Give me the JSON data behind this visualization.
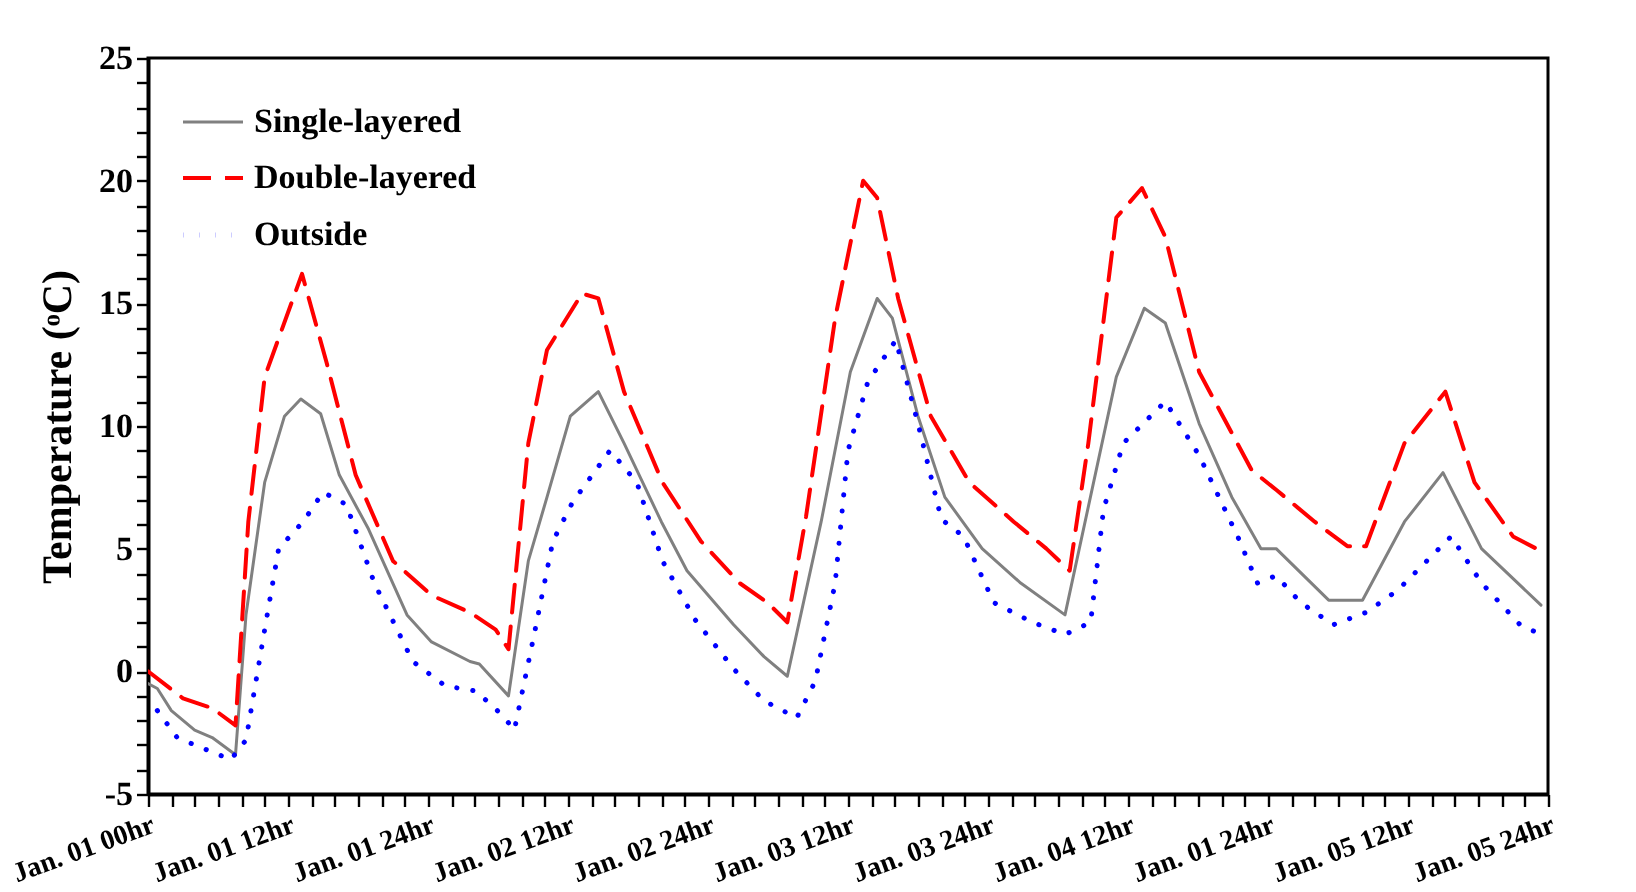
{
  "chart_data": {
    "type": "line",
    "ylabel": "Temperature (ᵒC)",
    "legend": "top left",
    "grid": false,
    "xlim": [
      "--01-01T00:00",
      "--01-06T00:00"
    ],
    "ylim": [
      -5,
      25
    ],
    "xticks": [
      {
        "value": "--01-01T00:00",
        "label": "Jan. 01 00hr"
      },
      {
        "value": "--01-01T02:00",
        "label": null
      },
      {
        "value": "--01-01T04:00",
        "label": null
      },
      {
        "value": "--01-01T06:00",
        "label": null
      },
      {
        "value": "--01-01T08:00",
        "label": null
      },
      {
        "value": "--01-01T10:00",
        "label": null
      },
      {
        "value": "--01-01T12:00",
        "label": "Jan. 01 12hr"
      },
      {
        "value": "--01-01T14:00",
        "label": null
      },
      {
        "value": "--01-01T16:00",
        "label": null
      },
      {
        "value": "--01-01T18:00",
        "label": null
      },
      {
        "value": "--01-01T20:00",
        "label": null
      },
      {
        "value": "--01-01T22:00",
        "label": null
      },
      {
        "value": "--01-02T00:00",
        "label": "Jan. 01 24hr"
      },
      {
        "value": "--01-02T02:00",
        "label": null
      },
      {
        "value": "--01-02T04:00",
        "label": null
      },
      {
        "value": "--01-02T06:00",
        "label": null
      },
      {
        "value": "--01-02T08:00",
        "label": null
      },
      {
        "value": "--01-02T10:00",
        "label": null
      },
      {
        "value": "--01-02T12:00",
        "label": "Jan. 02 12hr"
      },
      {
        "value": "--01-02T14:00",
        "label": null
      },
      {
        "value": "--01-02T16:00",
        "label": null
      },
      {
        "value": "--01-02T18:00",
        "label": null
      },
      {
        "value": "--01-02T20:00",
        "label": null
      },
      {
        "value": "--01-02T22:00",
        "label": null
      },
      {
        "value": "--01-03T00:00",
        "label": "Jan. 02 24hr"
      },
      {
        "value": "--01-03T02:00",
        "label": null
      },
      {
        "value": "--01-03T04:00",
        "label": null
      },
      {
        "value": "--01-03T06:00",
        "label": null
      },
      {
        "value": "--01-03T08:00",
        "label": null
      },
      {
        "value": "--01-03T10:00",
        "label": null
      },
      {
        "value": "--01-03T12:00",
        "label": "Jan. 03 12hr"
      },
      {
        "value": "--01-03T14:00",
        "label": null
      },
      {
        "value": "--01-03T16:00",
        "label": null
      },
      {
        "value": "--01-03T18:00",
        "label": null
      },
      {
        "value": "--01-03T20:00",
        "label": null
      },
      {
        "value": "--01-03T22:00",
        "label": null
      },
      {
        "value": "--01-04T00:00",
        "label": "Jan. 03 24hr"
      },
      {
        "value": "--01-04T02:00",
        "label": null
      },
      {
        "value": "--01-04T04:00",
        "label": null
      },
      {
        "value": "--01-04T06:00",
        "label": null
      },
      {
        "value": "--01-04T08:00",
        "label": null
      },
      {
        "value": "--01-04T10:00",
        "label": null
      },
      {
        "value": "--01-04T12:00",
        "label": "Jan. 04 12hr"
      },
      {
        "value": "--01-04T14:00",
        "label": null
      },
      {
        "value": "--01-04T16:00",
        "label": null
      },
      {
        "value": "--01-04T18:00",
        "label": null
      },
      {
        "value": "--01-04T20:00",
        "label": null
      },
      {
        "value": "--01-04T22:00",
        "label": null
      },
      {
        "value": "--01-05T00:00",
        "label": "Jan. 01 24hr"
      },
      {
        "value": "--01-05T02:00",
        "label": null
      },
      {
        "value": "--01-05T04:00",
        "label": null
      },
      {
        "value": "--01-05T06:00",
        "label": null
      },
      {
        "value": "--01-05T08:00",
        "label": null
      },
      {
        "value": "--01-05T10:00",
        "label": null
      },
      {
        "value": "--01-05T12:00",
        "label": "Jan. 05 12hr"
      },
      {
        "value": "--01-05T14:00",
        "label": null
      },
      {
        "value": "--01-05T16:00",
        "label": null
      },
      {
        "value": "--01-05T18:00",
        "label": null
      },
      {
        "value": "--01-05T20:00",
        "label": null
      },
      {
        "value": "--01-05T22:00",
        "label": null
      },
      {
        "value": "--01-06T00:00",
        "label": "Jan. 05 24hr"
      }
    ],
    "yticks": [
      -5,
      {
        "value": -4,
        "label": null
      },
      {
        "value": -3,
        "label": null
      },
      {
        "value": -2,
        "label": null
      },
      {
        "value": -1,
        "label": null
      },
      0,
      {
        "value": 1,
        "label": null
      },
      {
        "value": 2,
        "label": null
      },
      {
        "value": 3,
        "label": null
      },
      {
        "value": 4,
        "label": null
      },
      5,
      {
        "value": 6,
        "label": null
      },
      {
        "value": 7,
        "label": null
      },
      {
        "value": 8,
        "label": null
      },
      {
        "value": 9,
        "label": null
      },
      10,
      {
        "value": 11,
        "label": null
      },
      {
        "value": 12,
        "label": null
      },
      {
        "value": 13,
        "label": null
      },
      {
        "value": 14,
        "label": null
      },
      15,
      {
        "value": 16,
        "label": null
      },
      {
        "value": 17,
        "label": null
      },
      {
        "value": 18,
        "label": null
      },
      {
        "value": 19,
        "label": null
      },
      20,
      {
        "value": 21,
        "label": null
      },
      {
        "value": 22,
        "label": null
      },
      {
        "value": 23,
        "label": null
      },
      {
        "value": 24,
        "label": null
      },
      25
    ],
    "series": [
      {
        "name": "Single-layered",
        "color": "#808080",
        "line_style": "solid",
        "x": [
          "--01-01T00:00",
          "--01-01T00:48",
          "--01-01T02:00",
          "--01-01T04:00",
          "--01-01T05:30",
          "--01-01T07:30",
          "--01-01T08:24",
          "--01-01T10:00",
          "--01-01T11:42",
          "--01-01T13:06",
          "--01-01T14:48",
          "--01-01T16:24",
          "--01-01T18:54",
          "--01-01T22:12",
          "--01-02T00:18",
          "--01-02T03:36",
          "--01-02T04:24",
          "--01-02T06:54",
          "--01-02T08:36",
          "--01-02T10:12",
          "--01-02T12:12",
          "--01-02T14:36",
          "--01-02T16:48",
          "--01-02T20:00",
          "--01-02T22:12",
          "--01-03T02:12",
          "--01-03T04:48",
          "--01-03T06:48",
          "--01-03T09:42",
          "--01-03T12:12",
          "--01-03T14:30",
          "--01-03T15:48",
          "--01-03T18:00",
          "--01-03T20:18",
          "--01-03T23:30",
          "--01-04T02:48",
          "--01-04T06:36",
          "--01-04T11:00",
          "--01-04T13:24",
          "--01-04T15:12",
          "--01-04T18:06",
          "--01-04T20:54",
          "--01-04T23:24",
          "--01-05T00:42",
          "--01-05T05:12",
          "--01-05T08:06",
          "--01-05T11:42",
          "--01-05T15:00",
          "--01-05T18:18",
          "--01-05T23:24"
        ],
        "values": [
          -0.5,
          -0.7,
          -1.6,
          -2.4,
          -2.7,
          -3.4,
          2.3,
          7.7,
          10.4,
          11.1,
          10.5,
          8,
          5.8,
          2.3,
          1.2,
          0.4,
          0.3,
          -1,
          4.5,
          7.1,
          10.4,
          11.4,
          9.3,
          6.1,
          4.1,
          1.9,
          0.6,
          -0.2,
          6.1,
          12.2,
          15.2,
          14.4,
          10.4,
          7.1,
          5,
          3.6,
          2.3,
          12,
          14.8,
          14.2,
          10.1,
          7.1,
          5,
          5,
          2.9,
          2.9,
          6.1,
          8.1,
          5,
          2.7
        ]
      },
      {
        "name": "Double-layered",
        "color": "#ff0000",
        "line_style": "dashed",
        "x": [
          "--01-01T00:00",
          "--01-01T03:00",
          "--01-01T05:30",
          "--01-01T07:30",
          "--01-01T08:36",
          "--01-01T10:00",
          "--01-01T13:12",
          "--01-01T15:18",
          "--01-01T17:48",
          "--01-01T21:00",
          "--01-02T00:18",
          "--01-02T03:36",
          "--01-02T05:48",
          "--01-02T06:54",
          "--01-02T08:36",
          "--01-02T10:12",
          "--01-02T13:12",
          "--01-02T14:36",
          "--01-02T16:48",
          "--01-02T20:06",
          "--01-02T23:24",
          "--01-03T02:42",
          "--01-03T05:06",
          "--01-03T06:48",
          "--01-03T08:24",
          "--01-03T10:54",
          "--01-03T13:18",
          "--01-03T14:30",
          "--01-03T16:18",
          "--01-03T19:06",
          "--01-03T22:24",
          "--01-04T02:12",
          "--01-04T05:00",
          "--01-04T07:00",
          "--01-04T08:36",
          "--01-04T11:00",
          "--01-04T13:12",
          "--01-04T15:12",
          "--01-04T18:06",
          "--01-04T22:36",
          "--01-05T00:42",
          "--01-05T04:00",
          "--01-05T06:48",
          "--01-05T08:24",
          "--01-05T11:42",
          "--01-05T15:12",
          "--01-05T17:42",
          "--01-05T21:00",
          "--01-05T23:24"
        ],
        "values": [
          0,
          -1.1,
          -1.5,
          -2.2,
          6.1,
          12,
          16.2,
          12.6,
          8,
          4.5,
          3.1,
          2.4,
          1.7,
          0.9,
          9.3,
          13.1,
          15.4,
          15.2,
          11.4,
          7.7,
          5.3,
          3.6,
          2.8,
          2,
          6.3,
          14.4,
          20,
          19.3,
          15.2,
          10.4,
          7.7,
          6.1,
          5,
          4.1,
          9.3,
          18.5,
          19.7,
          17.7,
          12.2,
          8.2,
          7.4,
          6.1,
          5.1,
          5.1,
          9.3,
          11.4,
          7.7,
          5.5,
          4.9
        ]
      },
      {
        "name": "Outside",
        "color": "#0000ff",
        "line_style": "dotted",
        "x": [
          "--01-01T00:48",
          "--01-01T02:30",
          "--01-01T04:00",
          "--01-01T07:06",
          "--01-01T08:24",
          "--01-01T10:00",
          "--01-01T11:12",
          "--01-01T13:18",
          "--01-01T15:00",
          "--01-01T17:00",
          "--01-01T19:24",
          "--01-01T22:42",
          "--01-02T01:30",
          "--01-02T04:06",
          "--01-02T06:24",
          "--01-02T07:24",
          "--01-02T09:06",
          "--01-02T10:42",
          "--01-02T12:24",
          "--01-02T15:36",
          "--01-02T17:54",
          "--01-02T20:06",
          "--01-02T22:54",
          "--01-03T02:12",
          "--01-03T04:48",
          "--01-03T07:36",
          "--01-03T09:12",
          "--01-03T10:54",
          "--01-03T12:00",
          "--01-03T13:42",
          "--01-03T16:06",
          "--01-03T18:00",
          "--01-03T20:00",
          "--01-03T21:54",
          "--01-04T00:30",
          "--01-04T03:48",
          "--01-04T06:36",
          "--01-04T08:48",
          "--01-04T09:54",
          "--01-04T11:36",
          "--01-04T15:12",
          "--01-04T18:06",
          "--01-04T21:24",
          "--01-04T23:06",
          "--01-05T00:42",
          "--01-05T02:48",
          "--01-05T05:36",
          "--01-05T08:24",
          "--01-05T11:06",
          "--01-05T15:42",
          "--01-05T18:18",
          "--01-05T21:36",
          "--01-05T23:24"
        ],
        "values": [
          -1.6,
          -2.7,
          -3,
          -3.6,
          -2.8,
          1.7,
          5,
          6.1,
          7.3,
          6.8,
          3.6,
          0.4,
          -0.6,
          -0.8,
          -1.8,
          -2.4,
          1.5,
          5.3,
          6.9,
          9,
          7.7,
          4.5,
          2.1,
          0.1,
          -1.2,
          -1.9,
          -0.4,
          3.6,
          9,
          11.8,
          13.5,
          10.1,
          6.2,
          5.5,
          2.8,
          2,
          1.5,
          2,
          6.6,
          9.3,
          11,
          8.8,
          5.5,
          3.6,
          3.9,
          2.8,
          1.9,
          2.4,
          3.3,
          5.5,
          3.6,
          1.9,
          1.5
        ]
      }
    ]
  }
}
